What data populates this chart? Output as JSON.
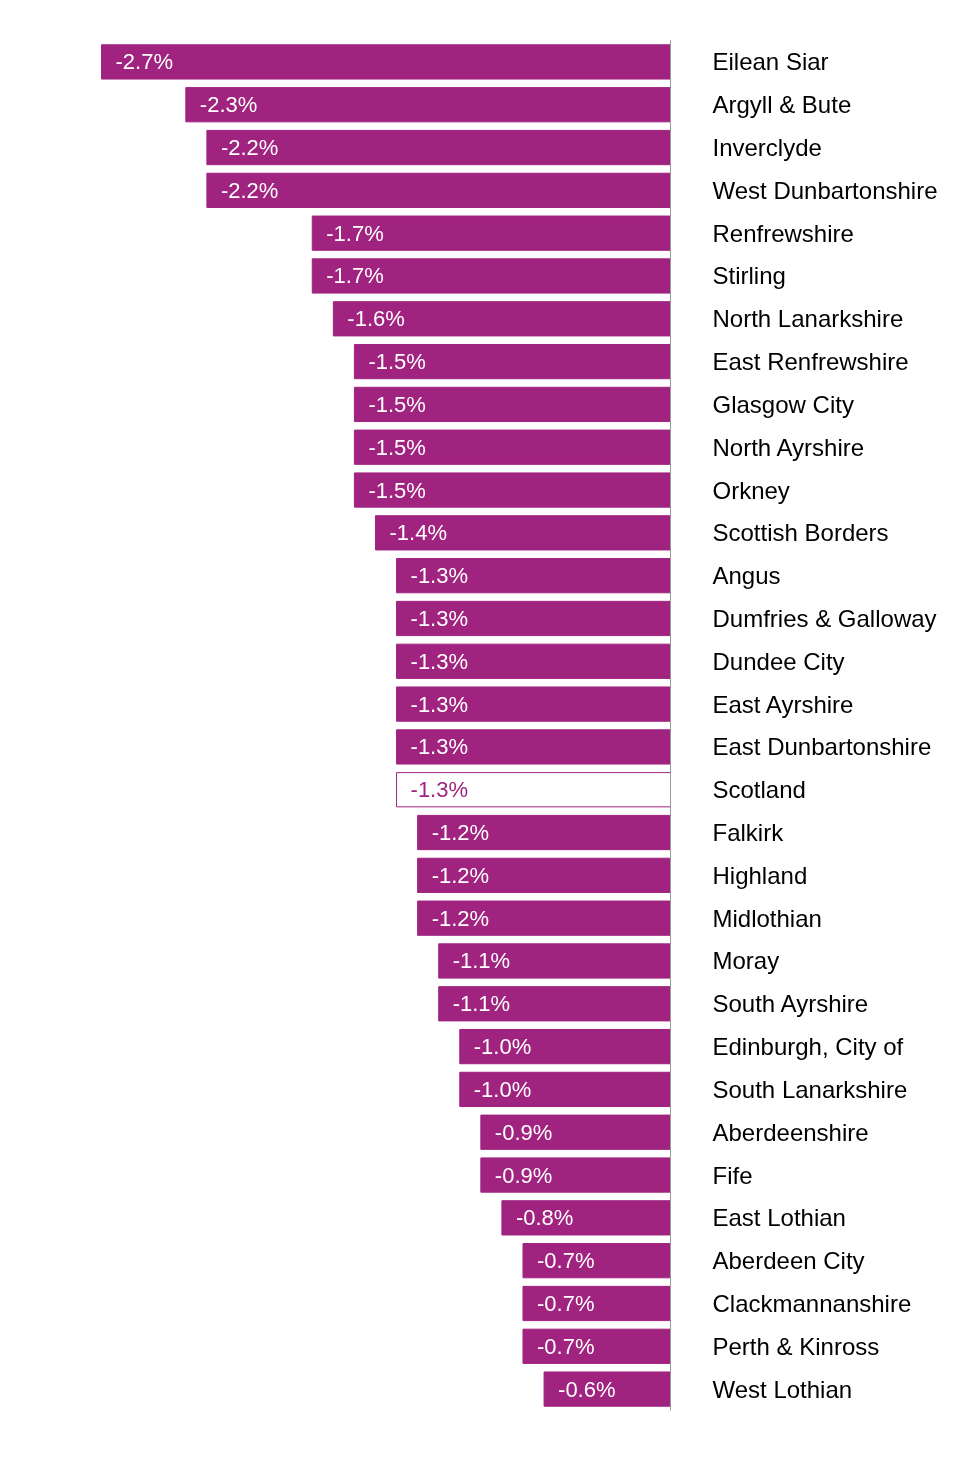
{
  "chart_data": {
    "type": "bar",
    "orientation": "horizontal",
    "grid": false,
    "categories": [
      "Eilean Siar",
      "Argyll & Bute",
      "Inverclyde",
      "West Dunbartonshire",
      "Renfrewshire",
      "Stirling",
      "North Lanarkshire",
      "East Renfrewshire",
      "Glasgow City",
      "North Ayrshire",
      "Orkney",
      "Scottish Borders",
      "Angus",
      "Dumfries & Galloway",
      "Dundee City",
      "East Ayrshire",
      "East Dunbartonshire",
      "Scotland",
      "Falkirk",
      "Highland",
      "Midlothian",
      "Moray",
      "South Ayrshire",
      "Edinburgh, City of",
      "South Lanarkshire",
      "Aberdeenshire",
      "Fife",
      "East Lothian",
      "Aberdeen City",
      "Clackmannanshire",
      "Perth & Kinross",
      "West Lothian"
    ],
    "series": [
      {
        "color": "#a0237f",
        "values": [
          -2.7,
          -2.3,
          -2.2,
          -2.2,
          -1.7,
          -1.7,
          -1.6,
          -1.5,
          -1.5,
          -1.5,
          -1.5,
          -1.4,
          -1.3,
          -1.3,
          -1.3,
          -1.3,
          -1.3,
          -1.3,
          -1.2,
          -1.2,
          -1.2,
          -1.1,
          -1.1,
          -1.0,
          -1.0,
          -0.9,
          -0.9,
          -0.8,
          -0.7,
          -0.7,
          -0.7,
          -0.6
        ],
        "value_labels": [
          "-2.7%",
          "-2.3%",
          "-2.2%",
          "-2.2%",
          "-1.7%",
          "-1.7%",
          "-1.6%",
          "-1.5%",
          "-1.5%",
          "-1.5%",
          "-1.5%",
          "-1.4%",
          "-1.3%",
          "-1.3%",
          "-1.3%",
          "-1.3%",
          "-1.3%",
          "-1.3%",
          "-1.2%",
          "-1.2%",
          "-1.2%",
          "-1.1%",
          "-1.1%",
          "-1.0%",
          "-1.0%",
          "-0.9%",
          "-0.9%",
          "-0.8%",
          "-0.7%",
          "-0.7%",
          "-0.7%",
          "-0.6%"
        ],
        "colors": [
          "#a0237f",
          "#a0237f",
          "#a0237f",
          "#a0237f",
          "#a0237f",
          "#a0237f",
          "#a0237f",
          "#a0237f",
          "#a0237f",
          "#a0237f",
          "#a0237f",
          "#a0237f",
          "#a0237f",
          "#a0237f",
          "#a0237f",
          "#a0237f",
          "#a0237f",
          "#ffffff",
          "#a0237f",
          "#a0237f",
          "#a0237f",
          "#a0237f",
          "#a0237f",
          "#a0237f",
          "#a0237f",
          "#a0237f",
          "#a0237f",
          "#a0237f",
          "#a0237f",
          "#a0237f",
          "#a0237f",
          "#a0237f"
        ]
      }
    ]
  }
}
